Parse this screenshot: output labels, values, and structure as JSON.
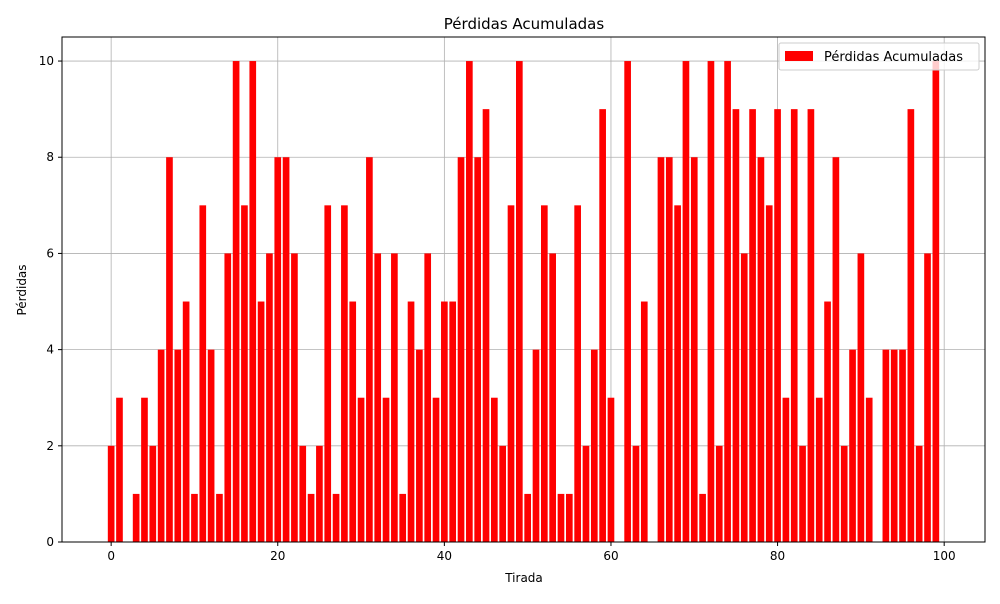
{
  "chart_data": {
    "type": "bar",
    "title": "Pérdidas Acumuladas",
    "xlabel": "Tirada",
    "ylabel": "Pérdidas",
    "xlim": [
      -5.9,
      104.9
    ],
    "ylim": [
      0,
      10.5
    ],
    "xticks": [
      0,
      20,
      40,
      60,
      80,
      100
    ],
    "yticks": [
      0,
      2,
      4,
      6,
      8,
      10
    ],
    "grid": true,
    "legend": {
      "position": "top-right"
    },
    "series": [
      {
        "name": "Pérdidas Acumuladas",
        "color": "#ff0000",
        "x": [
          0,
          1,
          2,
          3,
          4,
          5,
          6,
          7,
          8,
          9,
          10,
          11,
          12,
          13,
          14,
          15,
          16,
          17,
          18,
          19,
          20,
          21,
          22,
          23,
          24,
          25,
          26,
          27,
          28,
          29,
          30,
          31,
          32,
          33,
          34,
          35,
          36,
          37,
          38,
          39,
          40,
          41,
          42,
          43,
          44,
          45,
          46,
          47,
          48,
          49,
          50,
          51,
          52,
          53,
          54,
          55,
          56,
          57,
          58,
          59,
          60,
          61,
          62,
          63,
          64,
          65,
          66,
          67,
          68,
          69,
          70,
          71,
          72,
          73,
          74,
          75,
          76,
          77,
          78,
          79,
          80,
          81,
          82,
          83,
          84,
          85,
          86,
          87,
          88,
          89,
          90,
          91,
          92,
          93,
          94,
          95,
          96,
          97,
          98,
          99
        ],
        "values": [
          2,
          3,
          0,
          1,
          3,
          2,
          4,
          8,
          4,
          5,
          1,
          7,
          4,
          1,
          6,
          10,
          7,
          10,
          5,
          6,
          8,
          8,
          6,
          2,
          1,
          2,
          7,
          1,
          7,
          5,
          3,
          8,
          6,
          3,
          6,
          1,
          5,
          4,
          6,
          3,
          5,
          5,
          8,
          10,
          8,
          9,
          3,
          2,
          7,
          10,
          1,
          4,
          7,
          6,
          1,
          1,
          7,
          2,
          4,
          9,
          3,
          0,
          10,
          2,
          5,
          0,
          8,
          8,
          7,
          10,
          8,
          1,
          10,
          2,
          10,
          9,
          6,
          9,
          8,
          7,
          9,
          3,
          9,
          2,
          9,
          3,
          5,
          8,
          2,
          4,
          6,
          3,
          0,
          4,
          4,
          4,
          9,
          2,
          6,
          10
        ]
      }
    ]
  }
}
